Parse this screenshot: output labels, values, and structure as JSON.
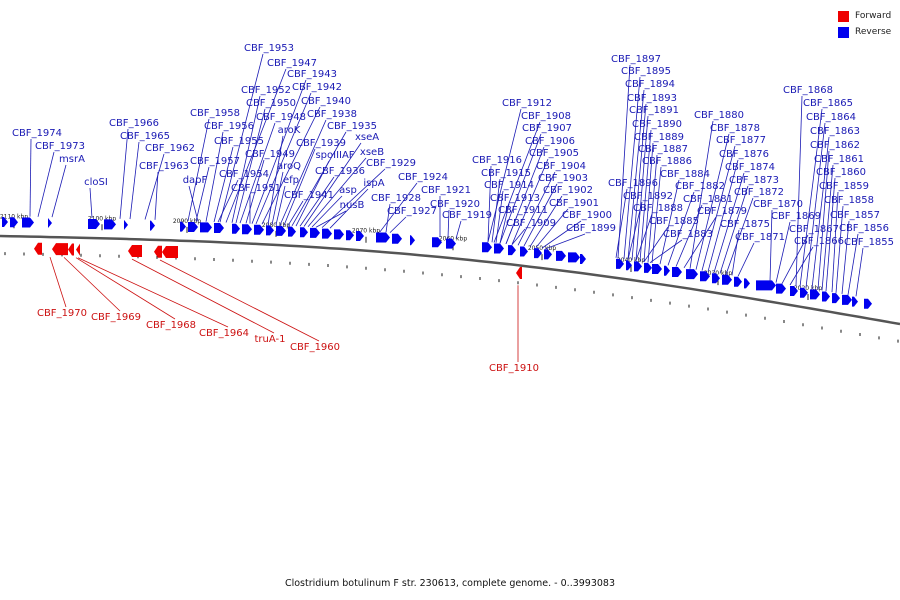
{
  "legend": {
    "forward": {
      "label": "Forward",
      "color": "#ee0000"
    },
    "reverse": {
      "label": "Reverse",
      "color": "#0000ee"
    }
  },
  "caption": "Clostridium botulinum F str. 230613, complete genome. - 0..3993083",
  "colors": {
    "reverse_label": "#1a1ab4",
    "forward_label": "#cc1111",
    "backbone": "#555555"
  },
  "ticks": [
    "2110 kbp",
    "2100 kbp",
    "2090 kbp",
    "2080 kbp",
    "2070 kbp",
    "2060 kbp",
    "2050 kbp",
    "2040 kbp",
    "2030 kbp",
    "2020 kbp"
  ],
  "reverse_labels": [
    "CBF_1974",
    "CBF_1973",
    "msrA",
    "cloSI",
    "CBF_1966",
    "CBF_1965",
    "CBF_1962",
    "CBF_1963",
    "CBF_1958",
    "CBF_1957",
    "dapF",
    "CBF_1956",
    "CBF_1955",
    "CBF_1954",
    "CBF_1953",
    "CBF_1947",
    "CBF_1952",
    "CBF_1950",
    "CBF_1948",
    "CBF_1949",
    "CBF_1951",
    "CBF_1943",
    "CBF_1942",
    "CBF_1940",
    "aroK",
    "aroQ",
    "efp",
    "CBF_1938",
    "CBF_1939",
    "CBF_1941",
    "CBF_1935",
    "spoIIIAF",
    "CBF_1936",
    "xseA",
    "xseB",
    "asp",
    "nusB",
    "CBF_1929",
    "ispA",
    "CBF_1924",
    "CBF_1928",
    "CBF_1927",
    "CBF_1921",
    "CBF_1920",
    "CBF_1919",
    "CBF_1912",
    "CBF_1908",
    "CBF_1907",
    "CBF_1906",
    "CBF_1905",
    "CBF_1904",
    "CBF_1903",
    "CBF_1902",
    "CBF_1901",
    "CBF_1900",
    "CBF_1899",
    "CBF_1916",
    "CBF_1915",
    "CBF_1914",
    "CBF_1913",
    "CBF_1911",
    "CBF_1909",
    "CBF_1897",
    "CBF_1895",
    "CBF_1894",
    "CBF_1893",
    "CBF_1891",
    "CBF_1890",
    "CBF_1889",
    "CBF_1887",
    "CBF_1886",
    "CBF_1896",
    "CBF_1892",
    "CBF_1888",
    "CBF_1885",
    "CBF_1883",
    "CBF_1884",
    "CBF_1882",
    "CBF_1881",
    "CBF_1879",
    "CBF_1880",
    "CBF_1878",
    "CBF_1877",
    "CBF_1876",
    "CBF_1874",
    "CBF_1873",
    "CBF_1872",
    "CBF_1875",
    "CBF_1871",
    "CBF_1870",
    "CBF_1869",
    "CBF_1867",
    "CBF_1866",
    "CBF_1868",
    "CBF_1865",
    "CBF_1864",
    "CBF_1863",
    "CBF_1862",
    "CBF_1861",
    "CBF_1860",
    "CBF_1859",
    "CBF_1858",
    "CBF_1857",
    "CBF_1856",
    "CBF_1855"
  ],
  "forward_labels": [
    "CBF_1970",
    "CBF_1969",
    "CBF_1968",
    "CBF_1964",
    "truA-1",
    "CBF_1960",
    "CBF_1910"
  ]
}
